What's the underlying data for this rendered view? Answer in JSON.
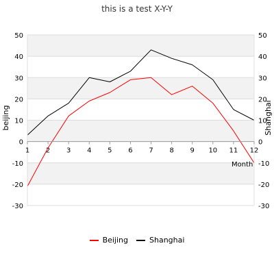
{
  "chart_data": {
    "type": "line",
    "title": "this is a test X-Y-Y",
    "xlabel": "Month",
    "ylabel": "beijing",
    "y2label": "Shanghai",
    "x": [
      1,
      2,
      3,
      4,
      5,
      6,
      7,
      8,
      9,
      10,
      11,
      12
    ],
    "xlim": [
      1,
      12
    ],
    "ylim": [
      -30,
      50
    ],
    "y2lim": [
      -30,
      50
    ],
    "y_ticks": [
      -30,
      -20,
      -10,
      0,
      10,
      20,
      30,
      40,
      50
    ],
    "grid": "alternating horizontal bands",
    "legend_position": "bottom",
    "series": [
      {
        "name": "Beijing",
        "axis": "left",
        "color": "#ff0000",
        "values": [
          -21,
          -3,
          12,
          19,
          23,
          29,
          30,
          22,
          26,
          18,
          5,
          -10
        ]
      },
      {
        "name": "Shanghai",
        "axis": "right",
        "color": "#000000",
        "values": [
          3,
          12,
          18,
          30,
          28,
          33,
          43,
          39,
          36,
          29,
          15,
          10
        ]
      }
    ]
  }
}
